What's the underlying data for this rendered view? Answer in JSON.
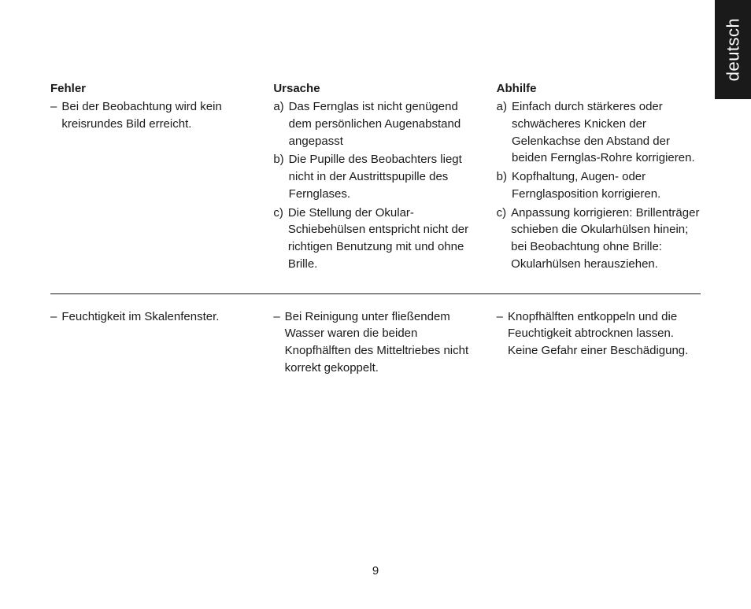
{
  "language_tab": "deutsch",
  "page_number": "9",
  "section1": {
    "col1": {
      "heading": "Fehler",
      "items": [
        {
          "marker": "–",
          "text": "Bei der Beobachtung wird kein kreisrundes Bild erreicht."
        }
      ]
    },
    "col2": {
      "heading": "Ursache",
      "items": [
        {
          "marker": "a)",
          "text": "Das Fernglas ist nicht genügend dem persönlichen Augenabstand angepasst"
        },
        {
          "marker": "b)",
          "text": "Die Pupille des Beobachters liegt nicht in der Austrittspupille des Fernglases."
        },
        {
          "marker": "c)",
          "text": "Die Stellung der Okular-Schiebehülsen entspricht nicht der richtigen Benutzung mit und ohne Brille."
        }
      ]
    },
    "col3": {
      "heading": "Abhilfe",
      "items": [
        {
          "marker": "a)",
          "text": "Einfach durch stärkeres oder schwächeres Knicken der Gelenkachse den Abstand der beiden Fernglas-Rohre korrigieren."
        },
        {
          "marker": "b)",
          "text": "Kopfhaltung, Augen- oder Fernglasposition korrigieren."
        },
        {
          "marker": "c)",
          "text": "Anpassung korrigieren: Brillenträger schieben die Okularhülsen hinein; bei Beobachtung ohne Brille: Okularhülsen herausziehen."
        }
      ]
    }
  },
  "section2": {
    "col1": {
      "items": [
        {
          "marker": "–",
          "text": "Feuchtigkeit im Skalenfenster."
        }
      ]
    },
    "col2": {
      "items": [
        {
          "marker": "–",
          "text": "Bei Reinigung unter fließendem Wasser waren die beiden Knopfhälften des Mitteltriebes nicht korrekt gekoppelt."
        }
      ]
    },
    "col3": {
      "items": [
        {
          "marker": "–",
          "text": "Knopfhälften entkoppeln und die Feuchtigkeit abtrocknen lassen. Keine Gefahr einer Beschädigung."
        }
      ]
    }
  }
}
